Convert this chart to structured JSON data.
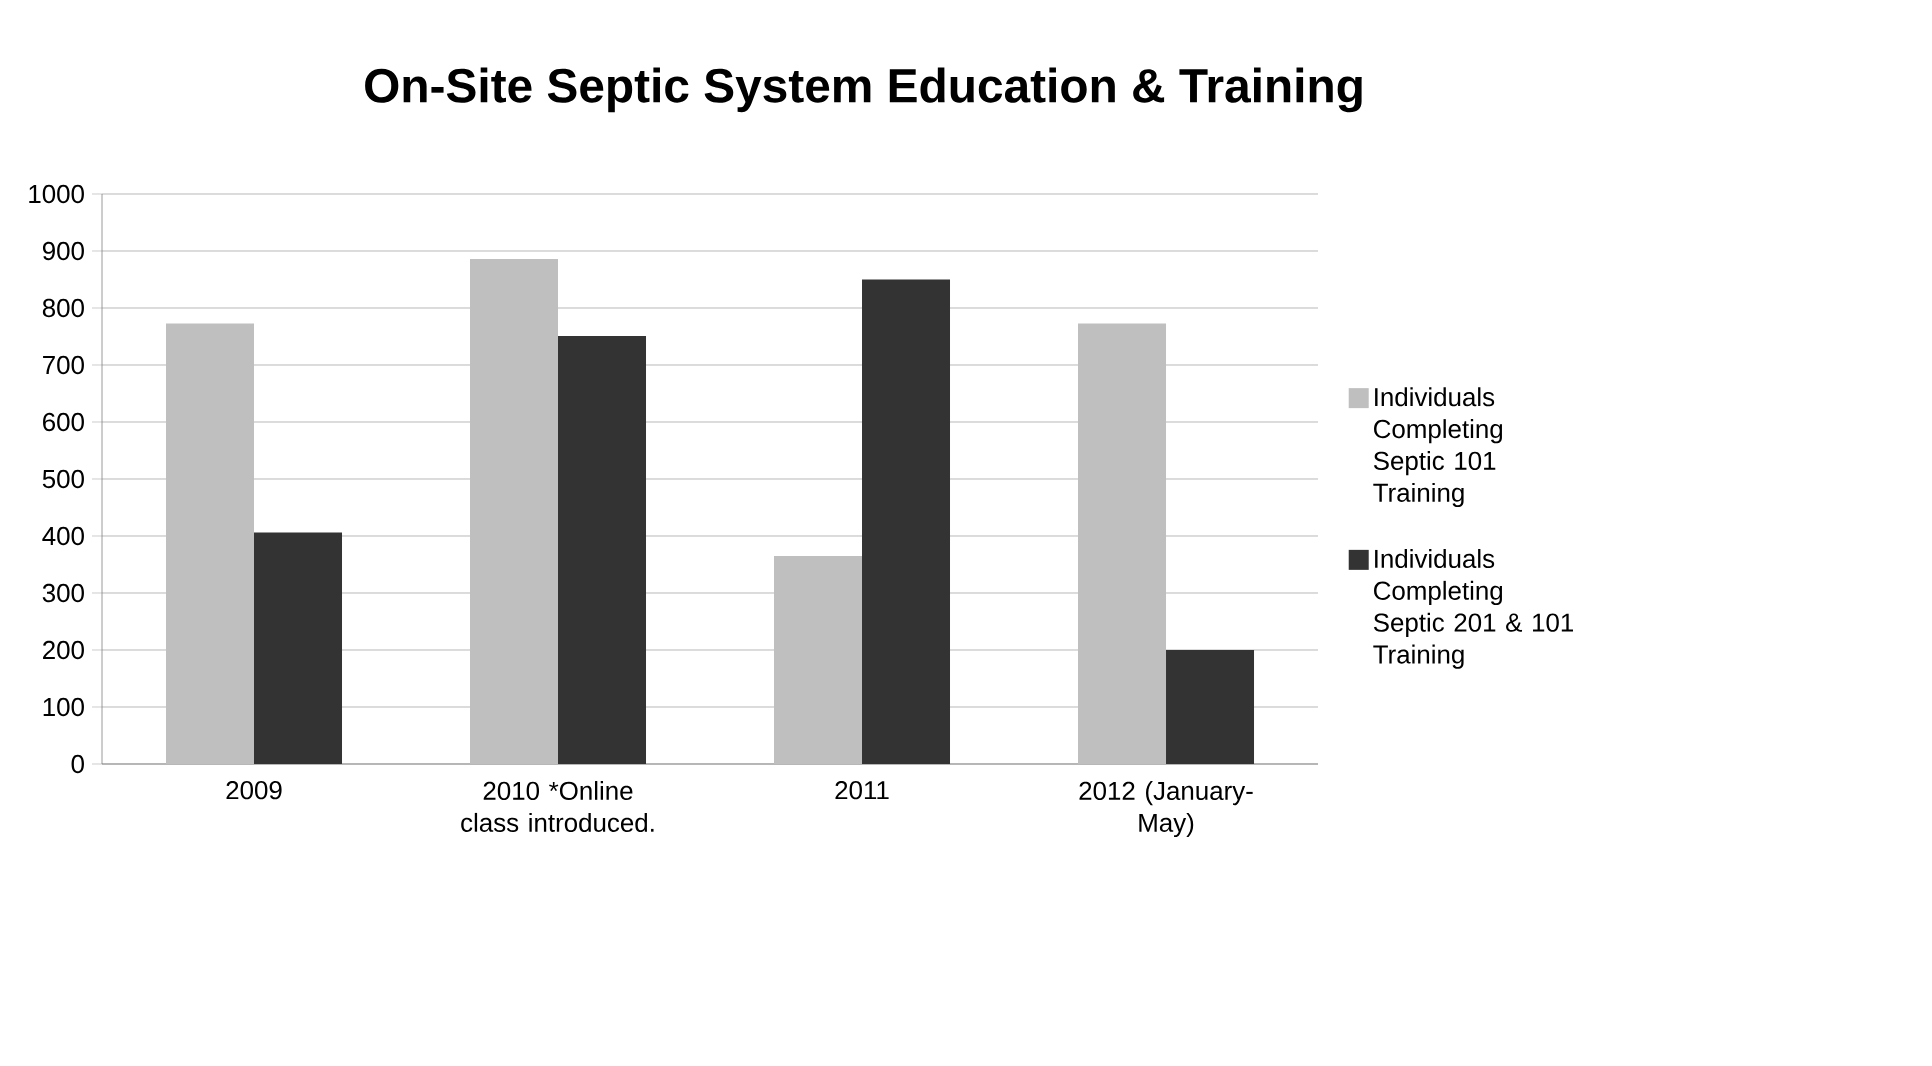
{
  "chart_data": {
    "type": "bar",
    "title": "On-Site Septic System Education & Training",
    "categories": [
      "2009",
      "2010 *Online class introduced.",
      "2011",
      "2012 (January-May)"
    ],
    "series": [
      {
        "name": "Individuals Completing Septic 101 Training",
        "color": "#bfbfbf",
        "values": [
          773,
          886,
          365,
          773
        ]
      },
      {
        "name": "Individuals Completing Septic 201 & 101 Training",
        "color": "#333333",
        "values": [
          406,
          751,
          850,
          200
        ]
      }
    ],
    "ylim": [
      0,
      1000
    ],
    "yticks": [
      0,
      100,
      200,
      300,
      400,
      500,
      600,
      700,
      800,
      900,
      1000
    ],
    "grid": "y",
    "legend": "right"
  }
}
